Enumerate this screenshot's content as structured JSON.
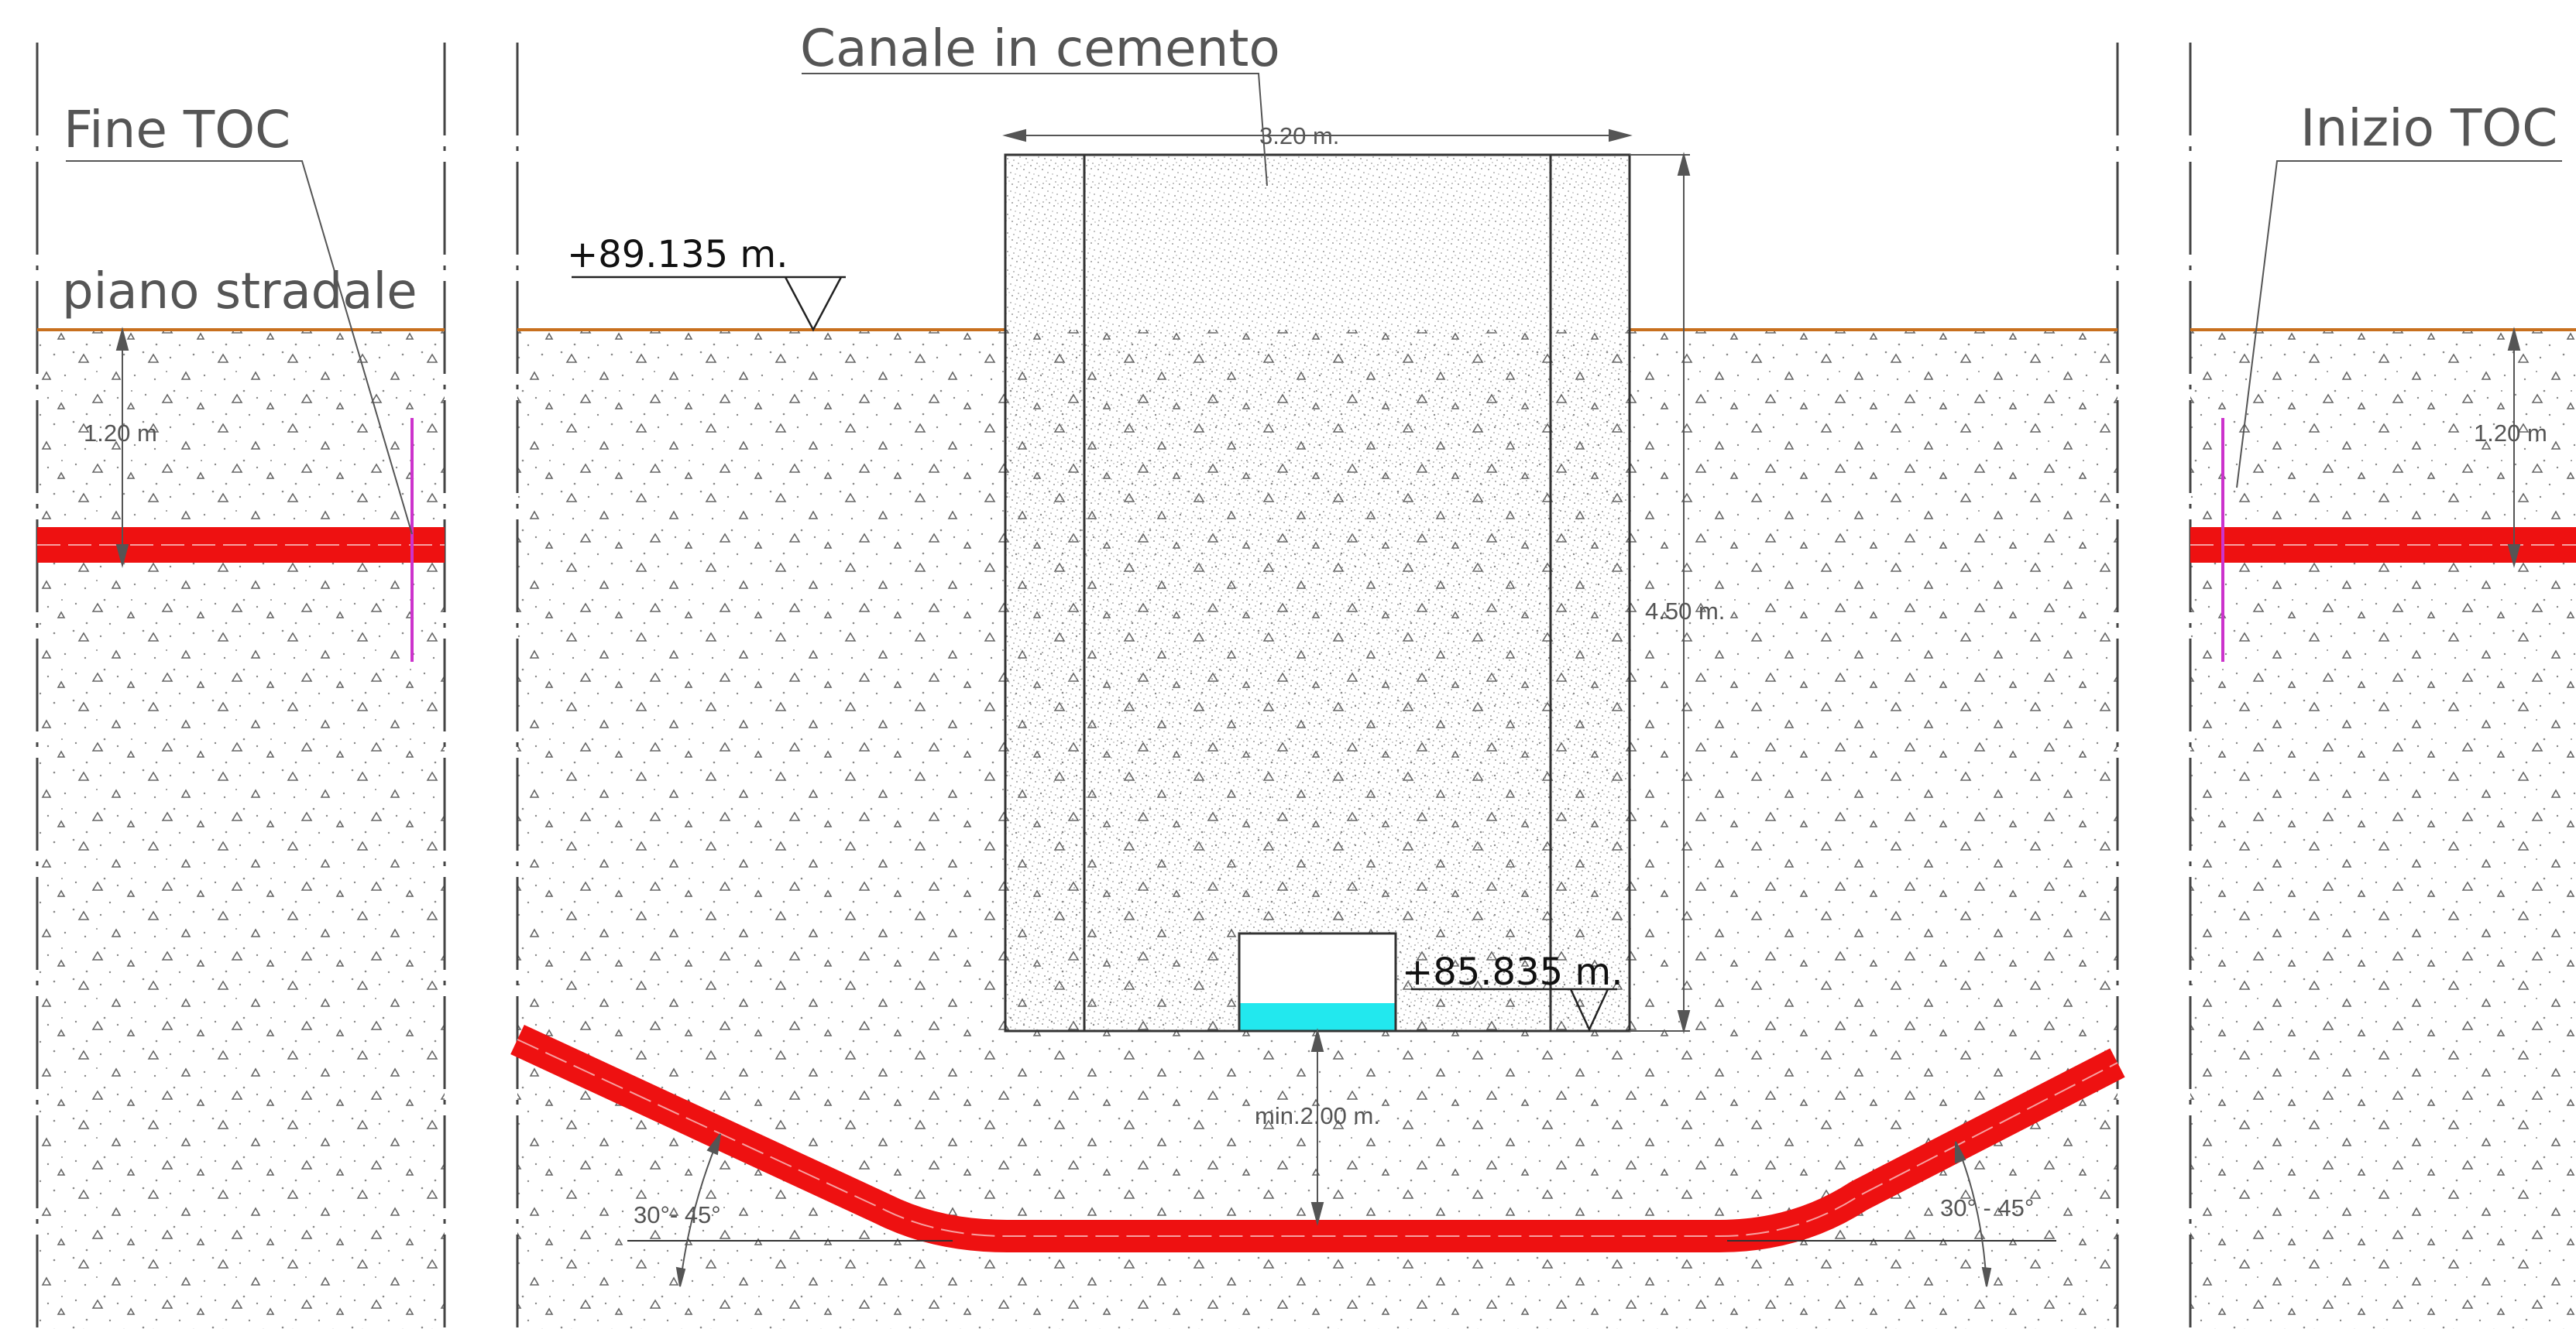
{
  "labels": {
    "fine_toc": "Fine TOC",
    "inizio_toc": "Inizio TOC",
    "piano_stradale": "piano stradale",
    "canale": "Canale in cemento"
  },
  "elevations": {
    "road": "+89.135 m.",
    "channel_bottom": "+85.835 m."
  },
  "dimensions": {
    "channel_width": "3.20 m.",
    "channel_height": "4.50 m.",
    "min_cover": "min.2.00 m.",
    "depth_left": "1.20 m",
    "depth_right": "1.20 m",
    "angle_left": "30°- 45°",
    "angle_right": "30° - 45°"
  },
  "colors": {
    "pipe": "#ee1111",
    "ground_line": "#c8701e",
    "water": "#22e8ee",
    "magenta_marker": "#cc33cc",
    "line": "#444444"
  }
}
